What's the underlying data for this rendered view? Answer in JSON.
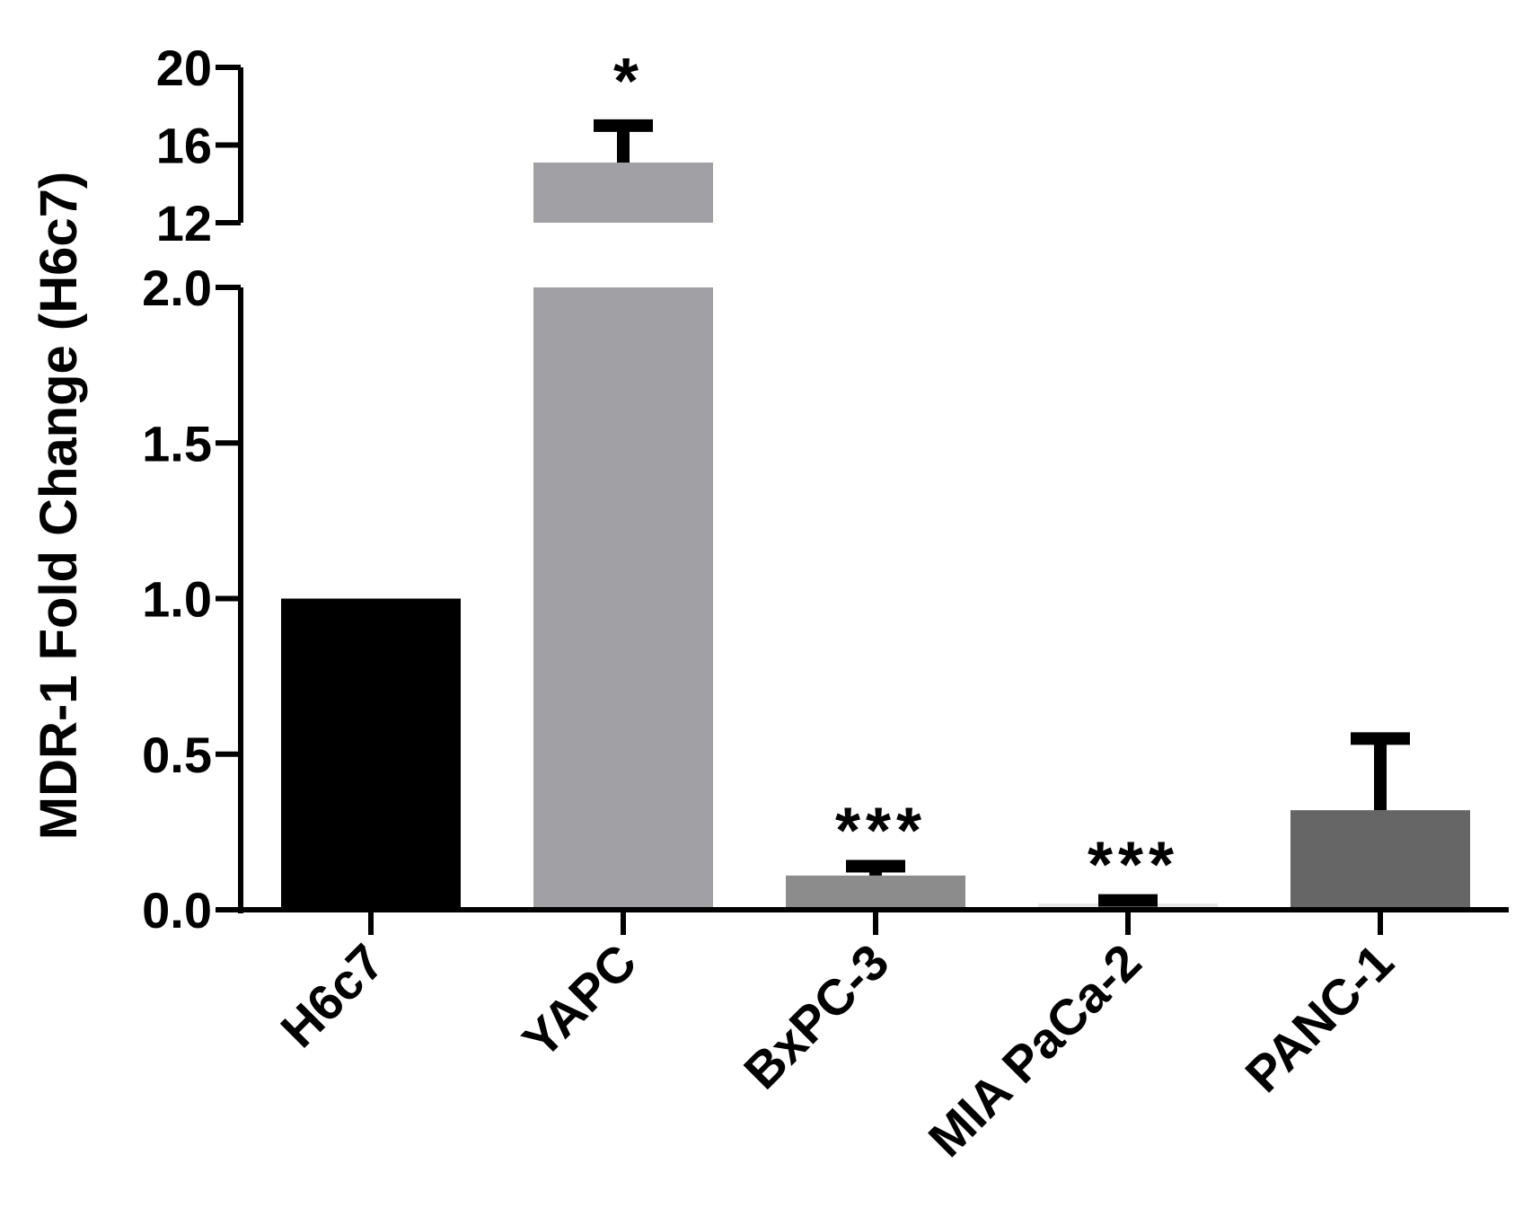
{
  "chart_data": {
    "type": "bar",
    "ylabel": "MDR-1 Fold Change (H6c7)",
    "xlabel": "",
    "categories": [
      "H6c7",
      "YAPC",
      "BxPC-3",
      "MIA PaCa-2",
      "PANC-1"
    ],
    "values": [
      1.0,
      15.1,
      0.11,
      0.02,
      0.32
    ],
    "error_upper": [
      0.0,
      17.0,
      0.14,
      0.03,
      0.55
    ],
    "bar_colors": [
      "#000000",
      "#a1a1a5",
      "#8c8c8c",
      "#e6e6e6",
      "#666666"
    ],
    "significance": [
      "",
      "*",
      "***",
      "***",
      ""
    ],
    "y_axis_broken": true,
    "ylim_lower": [
      0,
      2.0
    ],
    "ylim_upper": [
      12,
      20
    ],
    "yticks_lower": [
      "0.0",
      "0.5",
      "1.0",
      "1.5",
      "2.0"
    ],
    "yticks_upper": [
      "12",
      "16",
      "20"
    ],
    "grid": false
  }
}
